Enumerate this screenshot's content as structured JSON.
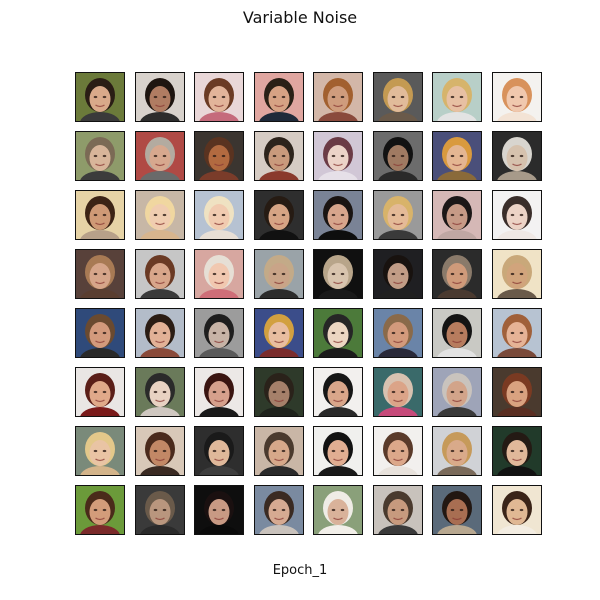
{
  "figure": {
    "title": "Variable Noise",
    "caption": "Epoch_1",
    "grid_rows": 8,
    "grid_cols": 8
  },
  "tiles": [
    {
      "bg": "#6b7a3a",
      "skin": "#d9a98a",
      "hair": "#2a1d15",
      "cloth": "#3a3a3a"
    },
    {
      "bg": "#d8d2cc",
      "skin": "#b07c62",
      "hair": "#1e1510",
      "cloth": "#2d2d2d"
    },
    {
      "bg": "#e9d7d8",
      "skin": "#e2b49a",
      "hair": "#6b3b25",
      "cloth": "#c56b7c"
    },
    {
      "bg": "#e0a6a0",
      "skin": "#d7a284",
      "hair": "#2a2016",
      "cloth": "#1f2a3a"
    },
    {
      "bg": "#d3b7a8",
      "skin": "#cf9c7d",
      "hair": "#a2602f",
      "cloth": "#8a4a3c"
    },
    {
      "bg": "#5a5a5a",
      "skin": "#e1bb9a",
      "hair": "#c49a52",
      "cloth": "#6a5a4a"
    },
    {
      "bg": "#b8cfc8",
      "skin": "#e7c0a3",
      "hair": "#d6b46c",
      "cloth": "#e3e3e3"
    },
    {
      "bg": "#f4f2ef",
      "skin": "#f0c8ae",
      "hair": "#d8925c",
      "cloth": "#f3e3d5"
    },
    {
      "bg": "#8e9b6a",
      "skin": "#d8b59a",
      "hair": "#7b6a55",
      "cloth": "#3c3c3c"
    },
    {
      "bg": "#b04a45",
      "skin": "#d7a88e",
      "hair": "#b3aba0",
      "cloth": "#6a6a6a"
    },
    {
      "bg": "#3b3530",
      "skin": "#b26a40",
      "hair": "#5a3320",
      "cloth": "#7a3c2a"
    },
    {
      "bg": "#d6ccc4",
      "skin": "#c99a7c",
      "hair": "#2d241c",
      "cloth": "#8a3a2c"
    },
    {
      "bg": "#d1c7d6",
      "skin": "#ecd3c8",
      "hair": "#6b3b46",
      "cloth": "#e6e0e8"
    },
    {
      "bg": "#6c6c6c",
      "skin": "#a07a62",
      "hair": "#121212",
      "cloth": "#2a2a2a"
    },
    {
      "bg": "#4a4f7a",
      "skin": "#e4b692",
      "hair": "#d99a3e",
      "cloth": "#8a6a3a"
    },
    {
      "bg": "#2b2b2b",
      "skin": "#d6c2ae",
      "hair": "#d8d5cf",
      "cloth": "#a79a8a"
    },
    {
      "bg": "#e6d3a6",
      "skin": "#cf9a76",
      "hair": "#3c2416",
      "cloth": "#b7a089"
    },
    {
      "bg": "#c7b7a6",
      "skin": "#f0cdb0",
      "hair": "#f0d7a0",
      "cloth": "#d7b58e"
    },
    {
      "bg": "#b6c2d2",
      "skin": "#f1cbb0",
      "hair": "#efe2c2",
      "cloth": "#e8dfd5"
    },
    {
      "bg": "#2e2e2e",
      "skin": "#d6a484",
      "hair": "#261b13",
      "cloth": "#111111"
    },
    {
      "bg": "#7a8396",
      "skin": "#d7a58c",
      "hair": "#1a1412",
      "cloth": "#0e0e0e"
    },
    {
      "bg": "#9a9a9a",
      "skin": "#e4ba97",
      "hair": "#d8b36a",
      "cloth": "#3a3a3a"
    },
    {
      "bg": "#d5b8b6",
      "skin": "#c69a86",
      "hair": "#1b1717",
      "cloth": "#bfa7a3"
    },
    {
      "bg": "#f3f2f2",
      "skin": "#ecd3c6",
      "hair": "#3a2e2a",
      "cloth": "#efe8e4"
    },
    {
      "bg": "#58413a",
      "skin": "#d6a58a",
      "hair": "#a87a54",
      "cloth": "#5a3e30"
    },
    {
      "bg": "#c6c6c6",
      "skin": "#d8a68a",
      "hair": "#6a3a24",
      "cloth": "#3a3a3a"
    },
    {
      "bg": "#d7a7a0",
      "skin": "#f1c8b0",
      "hair": "#e6dfd5",
      "cloth": "#cf6e78"
    },
    {
      "bg": "#9aa3a8",
      "skin": "#c9a488",
      "hair": "#c3aa88",
      "cloth": "#2c2c2c"
    },
    {
      "bg": "#101010",
      "skin": "#d8c4ae",
      "hair": "#b8a58a",
      "cloth": "#1a1a1a"
    },
    {
      "bg": "#1f1f22",
      "skin": "#c19c86",
      "hair": "#18120f",
      "cloth": "#202020"
    },
    {
      "bg": "#2b2b2b",
      "skin": "#cf9a7a",
      "hair": "#8a7a6a",
      "cloth": "#4a3a30"
    },
    {
      "bg": "#f0e3c6",
      "skin": "#d1a47c",
      "hair": "#c9a87a",
      "cloth": "#6a5a4a"
    },
    {
      "bg": "#2f4a7a",
      "skin": "#d39a7c",
      "hair": "#6a4a30",
      "cloth": "#2a2a2a"
    },
    {
      "bg": "#b3bcc9",
      "skin": "#e2b196",
      "hair": "#2a1c14",
      "cloth": "#8a4a3a"
    },
    {
      "bg": "#9c9c9c",
      "skin": "#c7b3a6",
      "hair": "#1e1e1e",
      "cloth": "#5a5a5a"
    },
    {
      "bg": "#3b4d8a",
      "skin": "#e8bda0",
      "hair": "#d2a040",
      "cloth": "#7a2c2c"
    },
    {
      "bg": "#4c7a3a",
      "skin": "#ecd6c2",
      "hair": "#262626",
      "cloth": "#1c1c1c"
    },
    {
      "bg": "#6a84a8",
      "skin": "#d39a7c",
      "hair": "#8a6a4a",
      "cloth": "#2a2a3a"
    },
    {
      "bg": "#c9c9c4",
      "skin": "#b77c5e",
      "hair": "#141414",
      "cloth": "#e3e3e3"
    },
    {
      "bg": "#b7c3d2",
      "skin": "#e6b396",
      "hair": "#a0603a",
      "cloth": "#7a4a3a"
    },
    {
      "bg": "#e9e6e4",
      "skin": "#e0a98a",
      "hair": "#5a1e18",
      "cloth": "#7a1a1a"
    },
    {
      "bg": "#6a7a5a",
      "skin": "#e8d2c2",
      "hair": "#2a2a2a",
      "cloth": "#cfc7c0"
    },
    {
      "bg": "#ece8e6",
      "skin": "#d6a08c",
      "hair": "#3a1410",
      "cloth": "#1a1a1a"
    },
    {
      "bg": "#2e3a2a",
      "skin": "#a5806a",
      "hair": "#2a221a",
      "cloth": "#1e221c"
    },
    {
      "bg": "#f2f0ee",
      "skin": "#d9a68a",
      "hair": "#161616",
      "cloth": "#2a2a2a"
    },
    {
      "bg": "#3a6a6a",
      "skin": "#dba488",
      "hair": "#d8c2b0",
      "cloth": "#c64a7a"
    },
    {
      "bg": "#9ea4b8",
      "skin": "#d2a48a",
      "hair": "#c9c3bd",
      "cloth": "#3a3a3a"
    },
    {
      "bg": "#4a3a2e",
      "skin": "#d9a280",
      "hair": "#7a3a22",
      "cloth": "#5a2e22"
    },
    {
      "bg": "#7a8a7a",
      "skin": "#e9c4a4",
      "hair": "#e3c88a",
      "cloth": "#d4b48a"
    },
    {
      "bg": "#d8c8b8",
      "skin": "#c28866",
      "hair": "#4a2a1c",
      "cloth": "#3a2a22"
    },
    {
      "bg": "#2e2e2e",
      "skin": "#dfb89a",
      "hair": "#1a1a1a",
      "cloth": "#3e3e3e"
    },
    {
      "bg": "#c9b6a6",
      "skin": "#d6a88a",
      "hair": "#4a3a2e",
      "cloth": "#2a2a2a"
    },
    {
      "bg": "#f0f0ee",
      "skin": "#e1ae92",
      "hair": "#121212",
      "cloth": "#1a1a1a"
    },
    {
      "bg": "#f2f0ee",
      "skin": "#dca88a",
      "hair": "#5a3a2a",
      "cloth": "#e8e2dc"
    },
    {
      "bg": "#d0d2d6",
      "skin": "#d9aa8a",
      "hair": "#c69a5a",
      "cloth": "#7a6a5a"
    },
    {
      "bg": "#213a2a",
      "skin": "#e1b89a",
      "hair": "#241a14",
      "cloth": "#121212"
    },
    {
      "bg": "#6b9a3a",
      "skin": "#d39c7a",
      "hair": "#4a2a1a",
      "cloth": "#7a2a2a"
    },
    {
      "bg": "#3a3a3a",
      "skin": "#b9967e",
      "hair": "#6a5a4a",
      "cloth": "#2a2a2a"
    },
    {
      "bg": "#0e0e0e",
      "skin": "#c89a84",
      "hair": "#1a1010",
      "cloth": "#0a0a0a"
    },
    {
      "bg": "#7a8aa0",
      "skin": "#d6aa92",
      "hair": "#3a2a22",
      "cloth": "#c9c2bc"
    },
    {
      "bg": "#8aa07a",
      "skin": "#d9b29a",
      "hair": "#efece6",
      "cloth": "#f2efe9"
    },
    {
      "bg": "#c8c2bc",
      "skin": "#c79a7e",
      "hair": "#4a3a2e",
      "cloth": "#3a3a3a"
    },
    {
      "bg": "#5a6a7a",
      "skin": "#a86e52",
      "hair": "#221712",
      "cloth": "#b8a890"
    },
    {
      "bg": "#f0e6d2",
      "skin": "#e0b894",
      "hair": "#3a2418",
      "cloth": "#f3ede2"
    }
  ]
}
